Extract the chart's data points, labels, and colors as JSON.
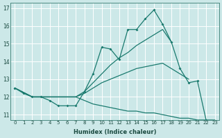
{
  "xlabel": "Humidex (Indice chaleur)",
  "xlim": [
    -0.5,
    23.5
  ],
  "ylim": [
    10.7,
    17.3
  ],
  "yticks": [
    11,
    12,
    13,
    14,
    15,
    16,
    17
  ],
  "xticks": [
    0,
    1,
    2,
    3,
    4,
    5,
    6,
    7,
    8,
    9,
    10,
    11,
    12,
    13,
    14,
    15,
    16,
    17,
    18,
    19,
    20,
    21,
    22,
    23
  ],
  "bg_color": "#cce8e8",
  "grid_color": "#ffffff",
  "line_color": "#1a7a6e",
  "line1_x": [
    0,
    1,
    2,
    3,
    4,
    5,
    6,
    7,
    8,
    9,
    10,
    11,
    12,
    13,
    14,
    15,
    16,
    17,
    18,
    19,
    20,
    21,
    22
  ],
  "line1_y": [
    12.5,
    12.2,
    12.0,
    12.0,
    11.8,
    11.5,
    11.5,
    11.5,
    12.3,
    13.3,
    14.8,
    14.7,
    14.1,
    15.8,
    15.8,
    16.4,
    16.9,
    16.1,
    15.1,
    13.6,
    12.8,
    12.9,
    10.7
  ],
  "line2_x": [
    0,
    2,
    3,
    4,
    5,
    6,
    7,
    8,
    9,
    10,
    11,
    12,
    13,
    14,
    15,
    16,
    17,
    18
  ],
  "line2_y": [
    12.5,
    12.0,
    12.0,
    12.0,
    12.0,
    12.0,
    12.0,
    12.3,
    12.8,
    13.3,
    13.8,
    14.2,
    14.5,
    14.9,
    15.2,
    15.5,
    15.8,
    15.1
  ],
  "line3_x": [
    0,
    2,
    3,
    4,
    5,
    6,
    7,
    8,
    9,
    10,
    11,
    12,
    13,
    14,
    15,
    16,
    17,
    18,
    19,
    20
  ],
  "line3_y": [
    12.5,
    12.0,
    12.0,
    12.0,
    12.0,
    12.0,
    12.0,
    12.2,
    12.5,
    12.8,
    13.0,
    13.2,
    13.4,
    13.6,
    13.7,
    13.8,
    13.9,
    13.6,
    13.3,
    13.0
  ],
  "line4_x": [
    0,
    2,
    3,
    4,
    5,
    6,
    7,
    8,
    9,
    10,
    11,
    12,
    13,
    14,
    15,
    16,
    17,
    18,
    19,
    20,
    21,
    22,
    23
  ],
  "line4_y": [
    12.5,
    12.0,
    12.0,
    12.0,
    12.0,
    12.0,
    12.0,
    11.8,
    11.6,
    11.5,
    11.4,
    11.3,
    11.2,
    11.2,
    11.1,
    11.1,
    11.0,
    10.9,
    10.8,
    10.8,
    10.7,
    10.7,
    10.7
  ]
}
